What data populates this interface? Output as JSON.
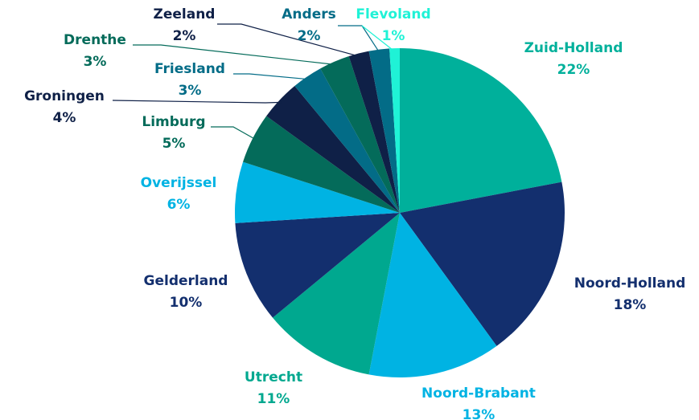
{
  "chart_data": {
    "type": "pie",
    "categories": [
      "Zuid-Holland",
      "Noord-Holland",
      "Noord-Brabant",
      "Utrecht",
      "Gelderland",
      "Overijssel",
      "Limburg",
      "Groningen",
      "Friesland",
      "Drenthe",
      "Zeeland",
      "Anders",
      "Flevoland"
    ],
    "values": [
      22,
      18,
      13,
      11,
      10,
      6,
      5,
      4,
      3,
      3,
      2,
      2,
      1
    ],
    "value_labels": [
      "22%",
      "18%",
      "13%",
      "11%",
      "10%",
      "6%",
      "5%",
      "4%",
      "3%",
      "3%",
      "2%",
      "2%",
      "1%"
    ],
    "colors": [
      "#00b09b",
      "#132f6e",
      "#00b3e3",
      "#00a88f",
      "#132f6e",
      "#00b3e3",
      "#046b5a",
      "#0f2047",
      "#036c87",
      "#046b5a",
      "#0f2047",
      "#036c87",
      "#1ff2d6"
    ]
  }
}
